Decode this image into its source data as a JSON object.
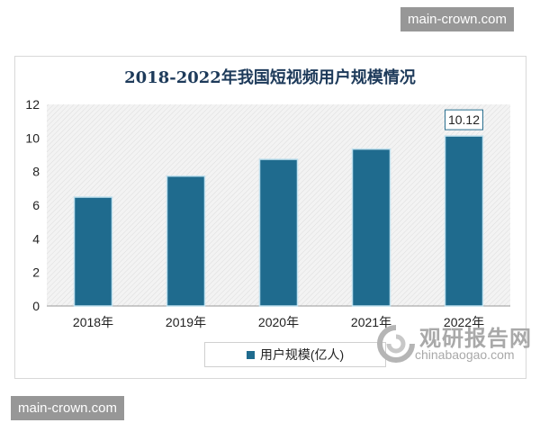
{
  "watermarks": [
    "main-crown.com",
    "main-crown.com"
  ],
  "logo": {
    "cn": "观研报告网",
    "en": "chinabaogao.com"
  },
  "chart_data": {
    "type": "bar",
    "title": "2018-2022年我国短视频用户规模情况",
    "categories": [
      "2018年",
      "2019年",
      "2020年",
      "2021年",
      "2022年"
    ],
    "series": [
      {
        "name": "用户规模(亿人)",
        "values": [
          6.48,
          7.73,
          8.73,
          9.34,
          10.12
        ]
      }
    ],
    "data_labels": {
      "2022年": "10.12"
    },
    "ylim": [
      0,
      12
    ],
    "yticks": [
      0,
      2,
      4,
      6,
      8,
      10,
      12
    ],
    "grid": false,
    "legend": "bottom",
    "bar_color": "#1f6b8e"
  }
}
